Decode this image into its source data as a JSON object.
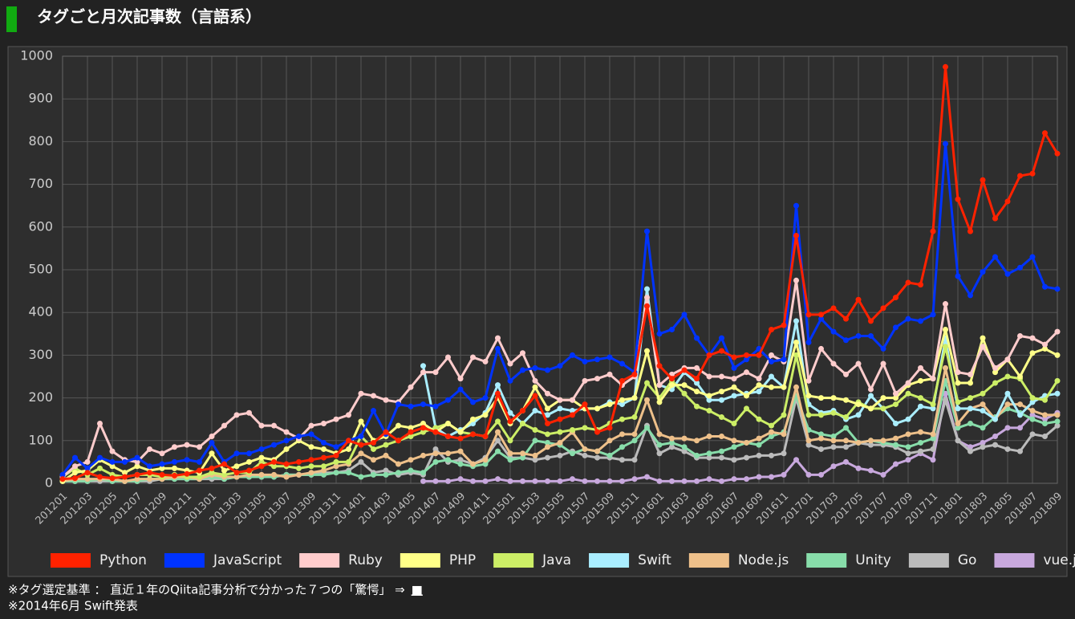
{
  "chart_data": {
    "type": "line",
    "title": "タグごと月次記事数（言語系）",
    "annotations": [
      "※タグ選定基準 ： 直近１年のQiita記事分析で分かった７つの「驚愕」 ⇒",
      "■",
      "※2014年6月 Swift発表"
    ],
    "categories": [
      "201201",
      null,
      "201203",
      null,
      "201205",
      null,
      "201207",
      null,
      "201209",
      null,
      "201211",
      null,
      "201301",
      null,
      "201303",
      null,
      "201305",
      null,
      "201307",
      null,
      "201309",
      null,
      "201311",
      null,
      "201401",
      null,
      "201403",
      null,
      "201405",
      null,
      "201407",
      null,
      "201409",
      null,
      "201411",
      null,
      "201501",
      null,
      "201503",
      null,
      "201505",
      null,
      "201507",
      null,
      "201509",
      null,
      "201511",
      null,
      "201601",
      null,
      "201603",
      null,
      "201605",
      null,
      "201607",
      null,
      "201609",
      null,
      "201611",
      null,
      "201701",
      null,
      "201703",
      null,
      "201705",
      null,
      "201707",
      null,
      "201709",
      null,
      "201711",
      null,
      "201801",
      null,
      "201803",
      null,
      "201805",
      null,
      "201807",
      null,
      "201809"
    ],
    "ylim": [
      0,
      1000
    ],
    "yticks": [
      0,
      100,
      200,
      300,
      400,
      500,
      600,
      700,
      800,
      900,
      1000
    ],
    "grid": true,
    "legend": "bottom",
    "series": [
      {
        "name": "Python",
        "color": "#ff2200",
        "values": [
          10,
          12,
          25,
          15,
          12,
          15,
          20,
          25,
          20,
          18,
          22,
          30,
          35,
          45,
          25,
          30,
          40,
          50,
          45,
          50,
          55,
          60,
          65,
          100,
          90,
          95,
          120,
          100,
          120,
          130,
          120,
          110,
          105,
          115,
          110,
          210,
          145,
          170,
          205,
          140,
          150,
          160,
          185,
          120,
          130,
          240,
          255,
          415,
          275,
          245,
          265,
          245,
          300,
          310,
          295,
          300,
          300,
          360,
          370,
          580,
          395,
          395,
          410,
          385,
          430,
          380,
          410,
          435,
          470,
          465,
          590,
          975,
          665,
          590,
          710,
          620,
          660,
          720,
          725,
          820,
          772
        ]
      },
      {
        "name": "JavaScript",
        "color": "#0033ff",
        "values": [
          20,
          60,
          35,
          60,
          50,
          50,
          60,
          40,
          45,
          50,
          55,
          50,
          95,
          50,
          70,
          70,
          80,
          90,
          100,
          110,
          115,
          95,
          85,
          100,
          110,
          170,
          115,
          185,
          180,
          185,
          180,
          195,
          220,
          190,
          200,
          315,
          240,
          265,
          270,
          265,
          275,
          300,
          285,
          290,
          295,
          280,
          260,
          590,
          350,
          360,
          395,
          340,
          300,
          340,
          270,
          290,
          315,
          285,
          290,
          650,
          330,
          385,
          355,
          335,
          345,
          345,
          315,
          365,
          385,
          380,
          395,
          795,
          485,
          440,
          495,
          530,
          490,
          505,
          530,
          460,
          455
        ]
      },
      {
        "name": "Ruby",
        "color": "#ffcccc",
        "values": [
          15,
          40,
          50,
          140,
          75,
          55,
          50,
          80,
          70,
          85,
          90,
          85,
          110,
          135,
          160,
          165,
          135,
          135,
          120,
          105,
          135,
          140,
          150,
          160,
          210,
          205,
          195,
          190,
          225,
          260,
          260,
          295,
          245,
          295,
          285,
          340,
          280,
          305,
          240,
          210,
          195,
          195,
          240,
          245,
          255,
          230,
          250,
          435,
          230,
          255,
          270,
          270,
          250,
          250,
          245,
          260,
          245,
          300,
          285,
          475,
          240,
          315,
          280,
          255,
          280,
          220,
          280,
          210,
          235,
          270,
          245,
          420,
          260,
          255,
          320,
          270,
          290,
          345,
          340,
          325,
          355
        ]
      },
      {
        "name": "PHP",
        "color": "#ffff88",
        "values": [
          5,
          25,
          30,
          55,
          40,
          25,
          40,
          30,
          35,
          35,
          30,
          25,
          70,
          30,
          40,
          50,
          60,
          55,
          80,
          100,
          85,
          80,
          70,
          80,
          145,
          100,
          110,
          135,
          130,
          140,
          120,
          140,
          120,
          150,
          160,
          200,
          140,
          170,
          225,
          175,
          195,
          195,
          175,
          175,
          185,
          195,
          200,
          310,
          190,
          230,
          230,
          215,
          205,
          215,
          225,
          205,
          230,
          225,
          225,
          330,
          205,
          200,
          200,
          195,
          185,
          175,
          200,
          200,
          230,
          240,
          245,
          360,
          235,
          235,
          340,
          260,
          290,
          250,
          305,
          315,
          300
        ]
      },
      {
        "name": "Java",
        "color": "#ccee66",
        "values": [
          15,
          35,
          20,
          35,
          20,
          15,
          20,
          20,
          15,
          20,
          15,
          15,
          25,
          20,
          25,
          25,
          50,
          40,
          40,
          35,
          40,
          40,
          50,
          50,
          110,
          80,
          90,
          100,
          110,
          120,
          130,
          140,
          120,
          115,
          110,
          145,
          100,
          140,
          125,
          115,
          120,
          125,
          130,
          125,
          140,
          150,
          155,
          235,
          200,
          240,
          210,
          180,
          170,
          155,
          140,
          175,
          150,
          135,
          160,
          300,
          160,
          160,
          165,
          155,
          190,
          175,
          175,
          185,
          210,
          200,
          185,
          320,
          190,
          200,
          210,
          235,
          250,
          245,
          200,
          195,
          240
        ]
      },
      {
        "name": "Swift",
        "color": "#aaeeff",
        "values": [
          null,
          null,
          null,
          null,
          null,
          null,
          null,
          null,
          null,
          null,
          null,
          null,
          null,
          null,
          null,
          null,
          null,
          null,
          null,
          null,
          null,
          null,
          null,
          null,
          null,
          null,
          null,
          null,
          null,
          275,
          130,
          110,
          125,
          140,
          165,
          230,
          165,
          140,
          170,
          160,
          175,
          170,
          175,
          175,
          190,
          185,
          200,
          455,
          230,
          220,
          260,
          235,
          195,
          195,
          205,
          210,
          215,
          250,
          225,
          380,
          185,
          165,
          170,
          150,
          160,
          205,
          175,
          140,
          150,
          180,
          175,
          340,
          175,
          175,
          170,
          150,
          210,
          160,
          190,
          205,
          210
        ]
      },
      {
        "name": "Node.js",
        "color": "#eec08a",
        "values": [
          5,
          10,
          10,
          10,
          10,
          5,
          10,
          10,
          10,
          15,
          15,
          10,
          20,
          15,
          15,
          20,
          20,
          20,
          15,
          20,
          25,
          30,
          40,
          45,
          70,
          55,
          65,
          45,
          55,
          65,
          70,
          70,
          75,
          45,
          55,
          120,
          70,
          70,
          65,
          85,
          95,
          120,
          80,
          75,
          100,
          115,
          115,
          195,
          115,
          105,
          105,
          100,
          110,
          110,
          100,
          95,
          105,
          120,
          115,
          225,
          100,
          105,
          100,
          100,
          95,
          100,
          100,
          105,
          115,
          120,
          115,
          270,
          140,
          175,
          185,
          150,
          185,
          185,
          170,
          160,
          160
        ]
      },
      {
        "name": "Unity",
        "color": "#88ddaa",
        "values": [
          5,
          5,
          5,
          10,
          5,
          5,
          5,
          10,
          10,
          10,
          10,
          10,
          15,
          10,
          15,
          15,
          15,
          15,
          20,
          20,
          20,
          20,
          25,
          25,
          15,
          20,
          20,
          25,
          30,
          25,
          50,
          55,
          45,
          40,
          45,
          75,
          55,
          60,
          100,
          95,
          90,
          70,
          80,
          75,
          65,
          85,
          100,
          130,
          90,
          95,
          85,
          65,
          70,
          75,
          85,
          95,
          90,
          110,
          120,
          205,
          125,
          115,
          110,
          130,
          95,
          100,
          95,
          90,
          85,
          95,
          105,
          240,
          130,
          140,
          130,
          155,
          175,
          165,
          150,
          140,
          145
        ]
      },
      {
        "name": "Go",
        "color": "#bbbbbb",
        "values": [
          5,
          5,
          5,
          5,
          5,
          5,
          5,
          5,
          10,
          10,
          10,
          10,
          10,
          10,
          15,
          15,
          15,
          15,
          20,
          20,
          20,
          25,
          25,
          30,
          50,
          25,
          30,
          20,
          25,
          20,
          80,
          50,
          55,
          45,
          60,
          100,
          60,
          60,
          55,
          60,
          65,
          75,
          65,
          60,
          60,
          55,
          55,
          135,
          70,
          85,
          75,
          60,
          60,
          60,
          55,
          60,
          65,
          65,
          70,
          200,
          90,
          80,
          85,
          85,
          95,
          90,
          90,
          85,
          70,
          75,
          80,
          195,
          100,
          75,
          85,
          90,
          80,
          75,
          115,
          110,
          135
        ]
      },
      {
        "name": "vue.js",
        "color": "#c8a8dd",
        "values": [
          null,
          null,
          null,
          null,
          null,
          null,
          null,
          null,
          null,
          null,
          null,
          null,
          null,
          null,
          null,
          null,
          null,
          null,
          null,
          null,
          null,
          null,
          null,
          null,
          null,
          null,
          null,
          null,
          null,
          5,
          5,
          5,
          10,
          5,
          5,
          10,
          5,
          5,
          5,
          5,
          5,
          10,
          5,
          5,
          5,
          5,
          10,
          15,
          5,
          5,
          5,
          5,
          10,
          5,
          10,
          10,
          15,
          15,
          20,
          55,
          20,
          20,
          40,
          50,
          35,
          30,
          20,
          45,
          55,
          70,
          55,
          210,
          100,
          85,
          95,
          110,
          130,
          130,
          160,
          150,
          165
        ]
      }
    ]
  }
}
